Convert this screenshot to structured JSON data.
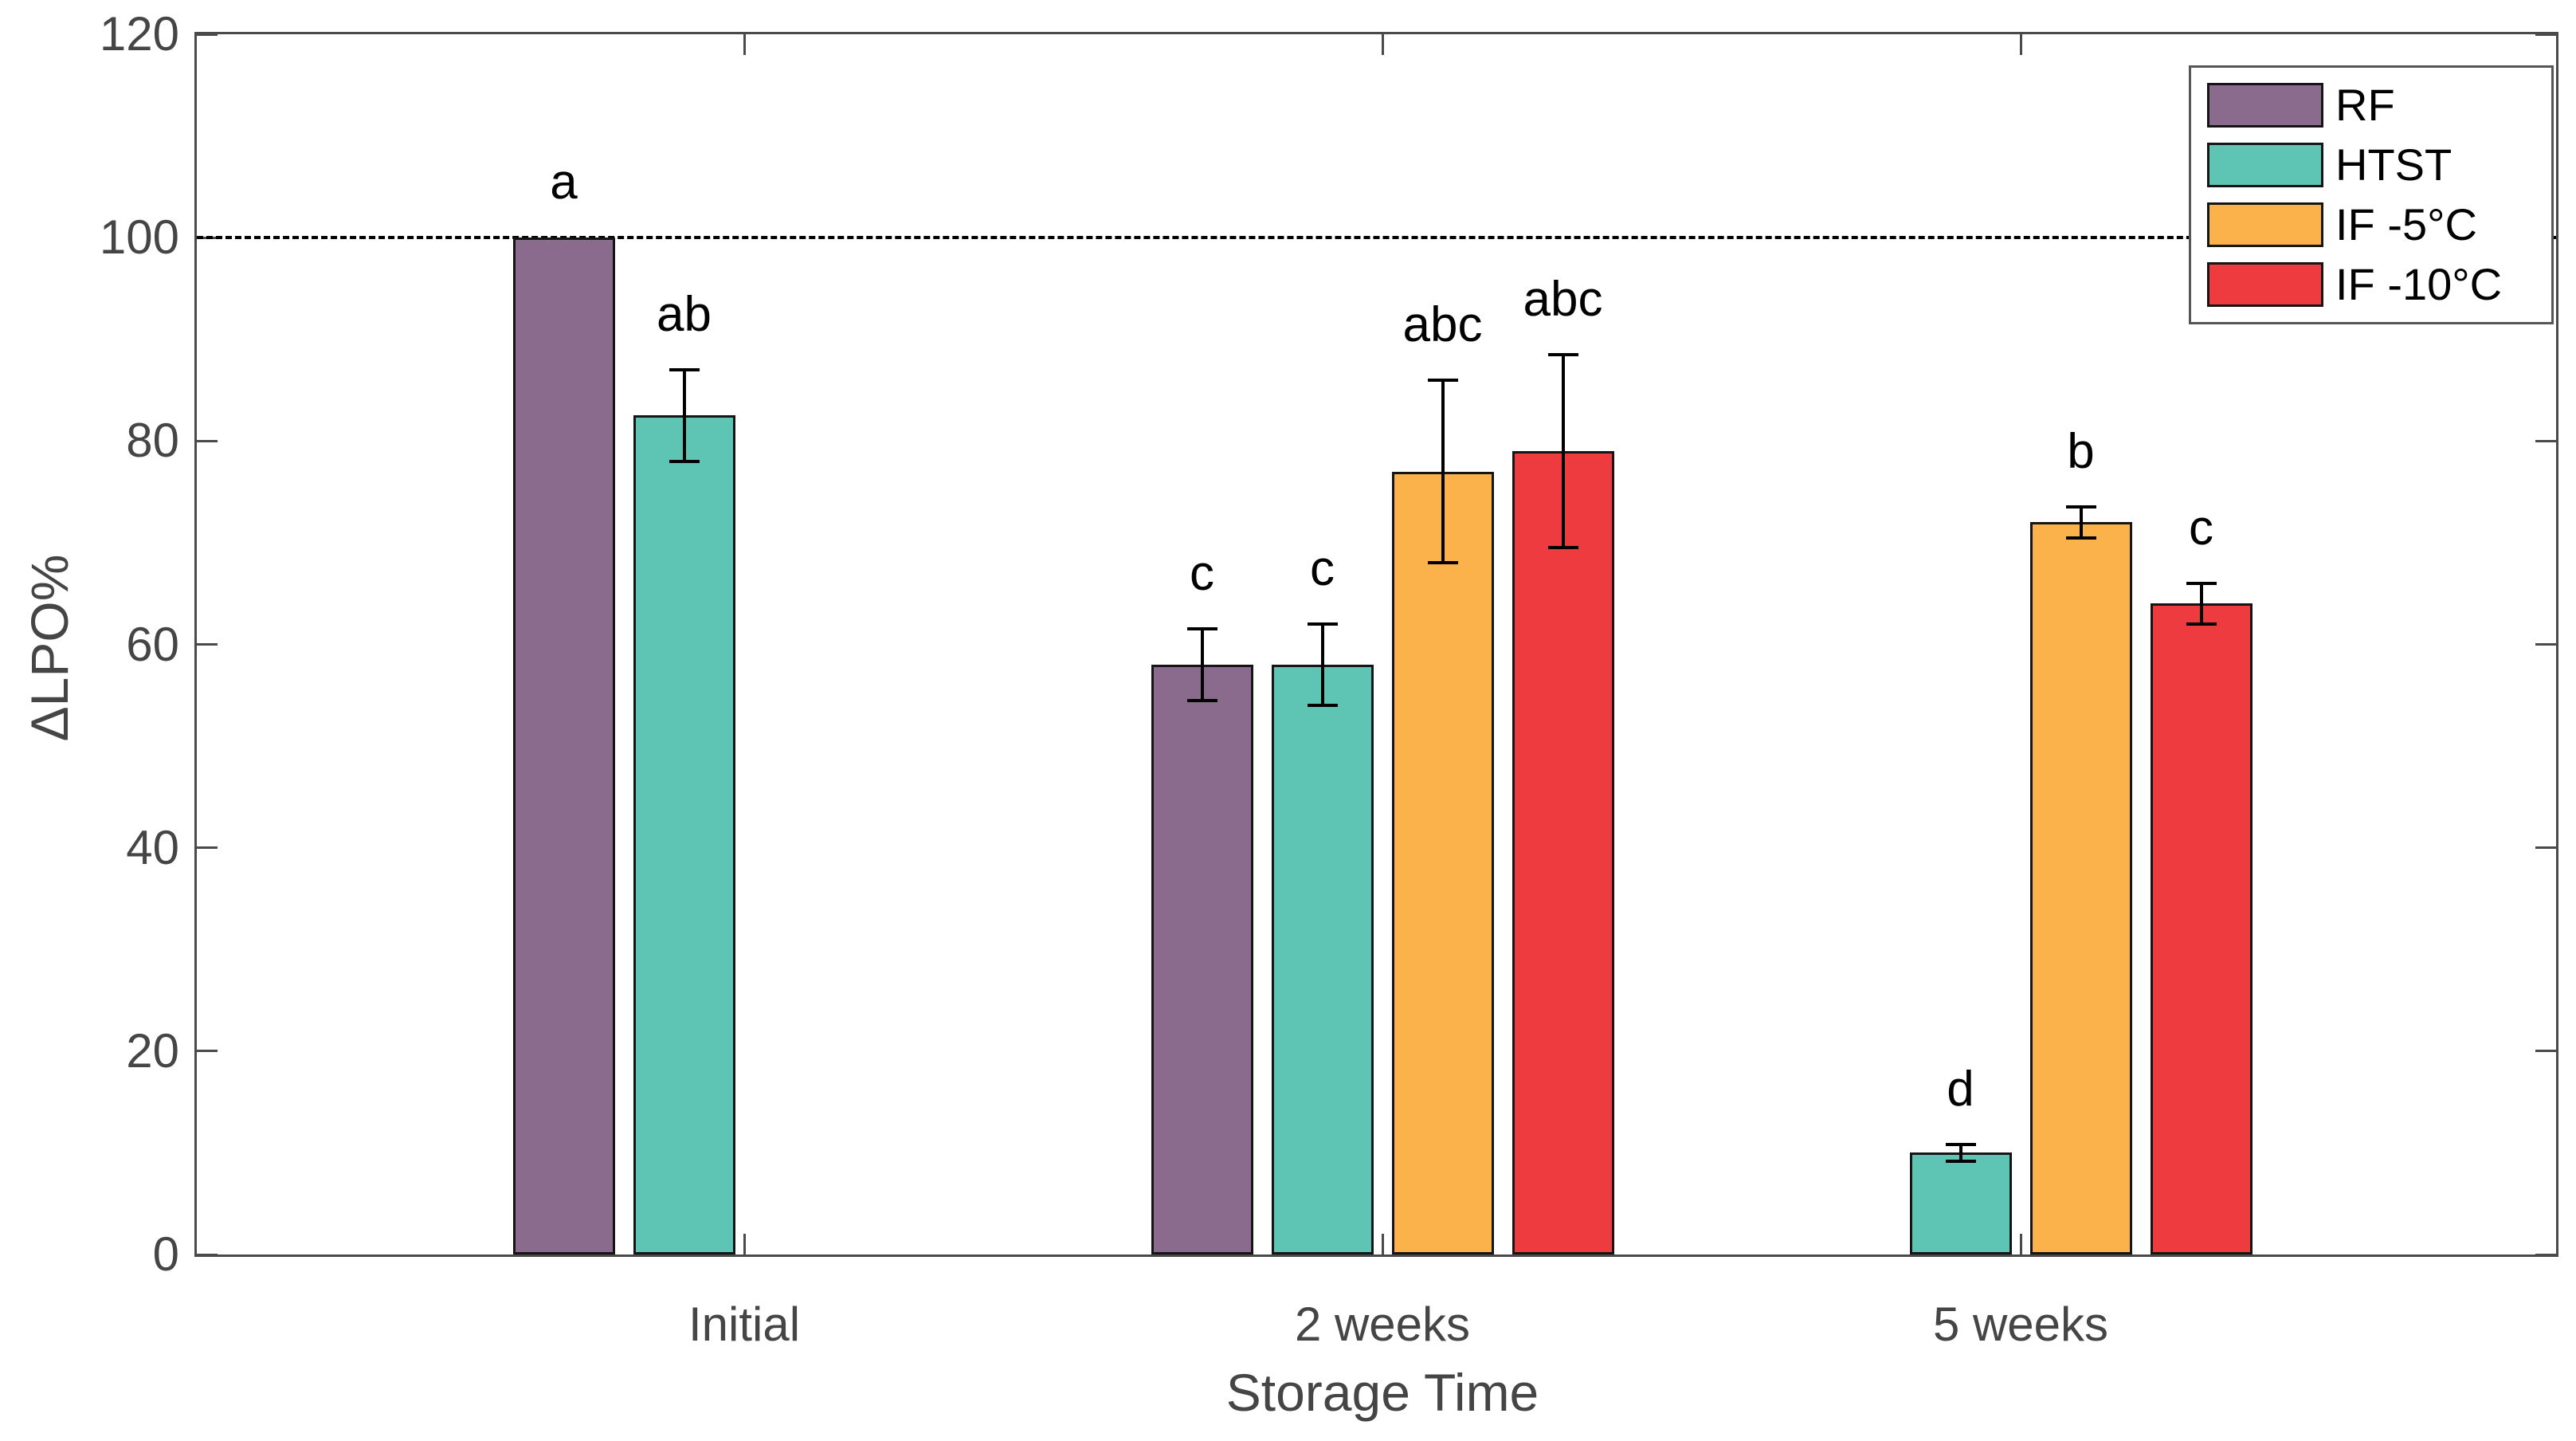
{
  "figure": {
    "ylabel": "ΔLPO%",
    "xlabel": "Storage Time"
  },
  "chart_data": {
    "type": "bar",
    "title": "",
    "xlabel": "Storage Time",
    "ylabel": "ΔLPO%",
    "categories": [
      "Initial",
      "2 weeks",
      "5 weeks"
    ],
    "series": [
      {
        "name": "RF",
        "color": "#8a6a8d",
        "values": [
          100,
          58,
          null
        ],
        "errors": [
          null,
          3.5,
          null
        ],
        "sig_letters": [
          "a",
          "c",
          null
        ]
      },
      {
        "name": "HTST",
        "color": "#5ec5b5",
        "values": [
          82.5,
          58,
          10
        ],
        "errors": [
          4.5,
          4,
          0.8
        ],
        "sig_letters": [
          "ab",
          "c",
          "d"
        ]
      },
      {
        "name": "IF -5°C",
        "color": "#fbb24a",
        "values": [
          null,
          77,
          72
        ],
        "errors": [
          null,
          9,
          1.5
        ],
        "sig_letters": [
          null,
          "abc",
          "b"
        ]
      },
      {
        "name": "IF -10°C",
        "color": "#ee3b40",
        "values": [
          null,
          79,
          64
        ],
        "errors": [
          null,
          9.5,
          2
        ],
        "sig_letters": [
          null,
          "abc",
          "c"
        ]
      }
    ],
    "ylim": [
      0,
      120
    ],
    "y_ticks": [
      0,
      20,
      40,
      60,
      80,
      100,
      120
    ],
    "reference_line": 100,
    "grid": false,
    "legend_position": "top-right",
    "bar_edge_color": "#000000",
    "error_bar_color": "#000000",
    "axis_color": "#4a4a4a",
    "tick_direction": "in"
  }
}
